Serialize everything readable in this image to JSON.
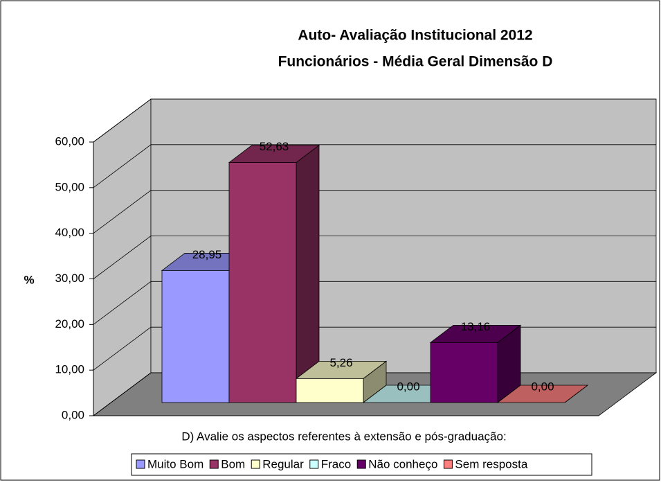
{
  "chart_data": {
    "type": "bar",
    "title": "Auto- Avaliação Institucional 2012",
    "subtitle": "Funcionários - Média Geral Dimensão D",
    "y_label": "%",
    "categories": [
      "D) Avalie os aspectos referentes à extensão e pós-graduação:"
    ],
    "series": [
      {
        "name": "Muito Bom",
        "color": "#9999ff",
        "values": [
          28.95
        ],
        "value_labels": [
          "28,95"
        ]
      },
      {
        "name": "Bom",
        "color": "#993366",
        "values": [
          52.63
        ],
        "value_labels": [
          "52,63"
        ]
      },
      {
        "name": "Regular",
        "color": "#ffffcc",
        "values": [
          5.26
        ],
        "value_labels": [
          "5,26"
        ]
      },
      {
        "name": "Fraco",
        "color": "#ccffff",
        "values": [
          0.0
        ],
        "value_labels": [
          "0,00"
        ]
      },
      {
        "name": "Não conheço",
        "color": "#660066",
        "values": [
          13.16
        ],
        "value_labels": [
          "13,16"
        ]
      },
      {
        "name": "Sem resposta",
        "color": "#ff8080",
        "values": [
          0.0
        ],
        "value_labels": [
          "0,00"
        ]
      }
    ],
    "ylim": [
      0,
      60
    ],
    "yticks": [
      {
        "value": 0,
        "label": "0,00"
      },
      {
        "value": 10,
        "label": "10,00"
      },
      {
        "value": 20,
        "label": "20,00"
      },
      {
        "value": 30,
        "label": "30,00"
      },
      {
        "value": 40,
        "label": "40,00"
      },
      {
        "value": 50,
        "label": "50,00"
      },
      {
        "value": 60,
        "label": "60,00"
      }
    ],
    "grid": true,
    "legend": "bottom"
  }
}
